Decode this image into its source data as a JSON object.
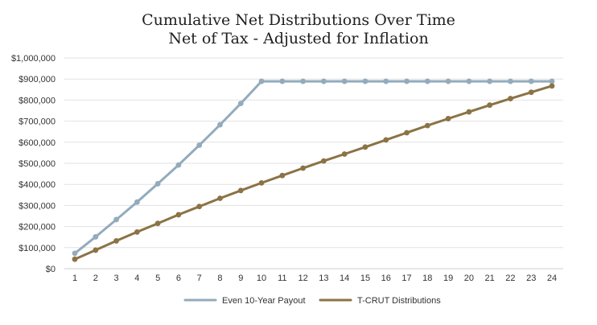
{
  "chart_data": {
    "type": "line",
    "title": "Cumulative Net Distributions Over Time",
    "subtitle": "Net of Tax - Adjusted for Inflation",
    "xlabel": "",
    "ylabel": "",
    "x": [
      1,
      2,
      3,
      4,
      5,
      6,
      7,
      8,
      9,
      10,
      11,
      12,
      13,
      14,
      15,
      16,
      17,
      18,
      19,
      20,
      21,
      22,
      23,
      24
    ],
    "ylim": [
      0,
      1000000
    ],
    "y_ticks": [
      0,
      100000,
      200000,
      300000,
      400000,
      500000,
      600000,
      700000,
      800000,
      900000,
      1000000
    ],
    "y_tick_labels": [
      "$0",
      "$100,000",
      "$200,000",
      "$300,000",
      "$400,000",
      "$500,000",
      "$600,000",
      "$700,000",
      "$800,000",
      "$900,000",
      "$1,000,000"
    ],
    "grid": true,
    "legend_position": "bottom",
    "series": [
      {
        "name": "Even 10-Year Payout",
        "color": "#93abbc",
        "values": [
          73000,
          151000,
          233000,
          316000,
          403000,
          492000,
          586000,
          683000,
          784000,
          889000,
          889000,
          889000,
          889000,
          889000,
          889000,
          889000,
          889000,
          889000,
          889000,
          889000,
          889000,
          889000,
          889000,
          889000
        ]
      },
      {
        "name": "T-CRUT Distributions",
        "color": "#8b7345",
        "values": [
          45000,
          88000,
          132000,
          174000,
          215000,
          256000,
          295000,
          334000,
          371000,
          407000,
          442000,
          477000,
          511000,
          544000,
          577000,
          611000,
          645000,
          679000,
          712000,
          744000,
          776000,
          807000,
          837000,
          867000
        ]
      }
    ]
  }
}
